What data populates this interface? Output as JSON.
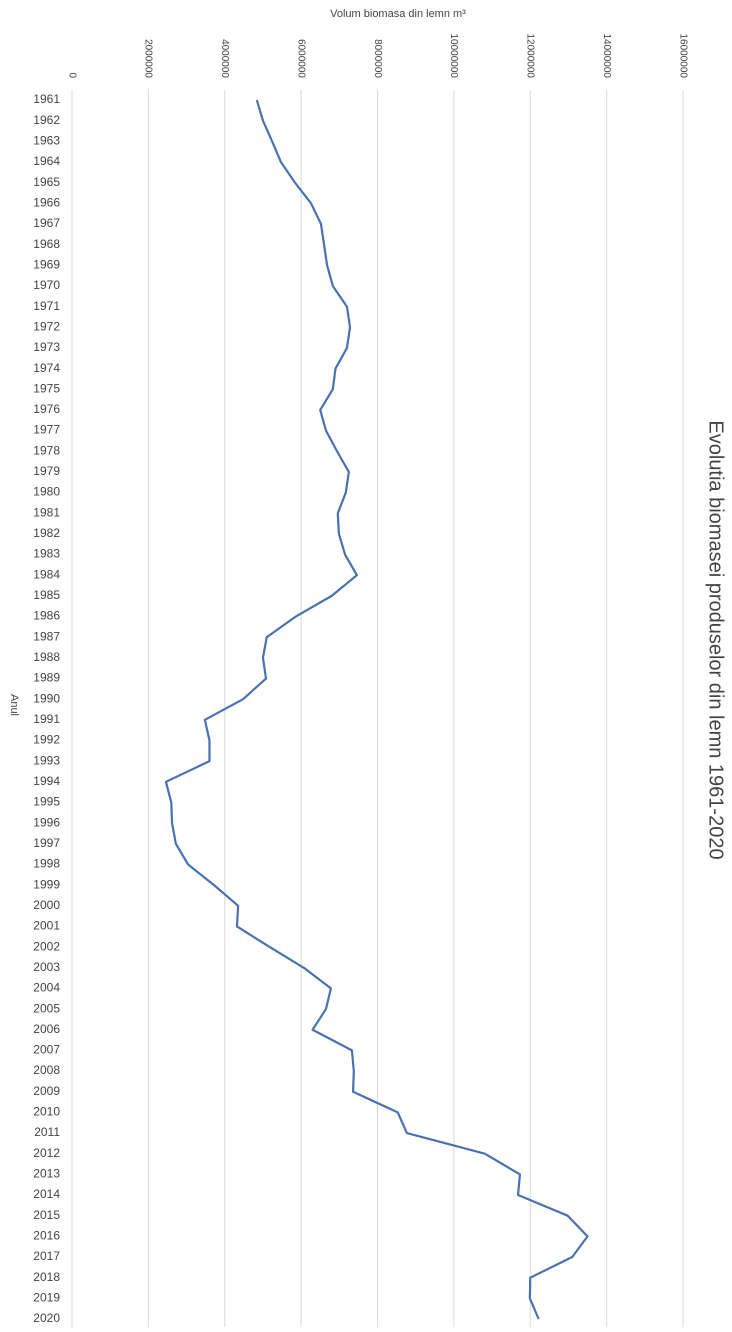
{
  "chart_data": {
    "type": "line",
    "title": "Evolutia biomasei produselor din lemn 1961-2020",
    "x_label": "Volum biomasa din lemn m³",
    "y_label": "Anul",
    "categories": [
      "1961",
      "1962",
      "1963",
      "1964",
      "1965",
      "1966",
      "1967",
      "1968",
      "1969",
      "1970",
      "1971",
      "1972",
      "1973",
      "1974",
      "1975",
      "1976",
      "1977",
      "1978",
      "1979",
      "1980",
      "1981",
      "1982",
      "1983",
      "1984",
      "1985",
      "1986",
      "1987",
      "1988",
      "1989",
      "1990",
      "1991",
      "1992",
      "1993",
      "1994",
      "1995",
      "1996",
      "1997",
      "1998",
      "1999",
      "2000",
      "2001",
      "2002",
      "2003",
      "2004",
      "2005",
      "2006",
      "2007",
      "2008",
      "2009",
      "2010",
      "2011",
      "2012",
      "2013",
      "2014",
      "2015",
      "2016",
      "2017",
      "2018",
      "2019",
      "2020"
    ],
    "series": [
      {
        "name": "Volum biomasa din lemn",
        "color": "#4a72b0",
        "values": [
          4840000,
          5000000,
          5240000,
          5470000,
          5840000,
          6260000,
          6520000,
          6600000,
          6680000,
          6830000,
          7200000,
          7280000,
          7200000,
          6900000,
          6830000,
          6500000,
          6650000,
          6940000,
          7250000,
          7170000,
          6960000,
          6990000,
          7150000,
          7460000,
          6800000,
          5860000,
          5100000,
          5000000,
          5080000,
          4480000,
          3480000,
          3600000,
          3600000,
          2460000,
          2600000,
          2620000,
          2720000,
          3040000,
          3720000,
          4350000,
          4320000,
          5180000,
          6070000,
          6780000,
          6650000,
          6300000,
          7330000,
          7380000,
          7360000,
          8530000,
          8770000,
          10810000,
          11730000,
          11680000,
          12980000,
          13500000,
          13100000,
          12000000,
          11990000,
          12220000
        ]
      }
    ],
    "xlim": [
      0,
      16000000
    ],
    "xticks": [
      0,
      2000000,
      4000000,
      6000000,
      8000000,
      10000000,
      12000000,
      14000000,
      16000000
    ],
    "grid": true
  }
}
